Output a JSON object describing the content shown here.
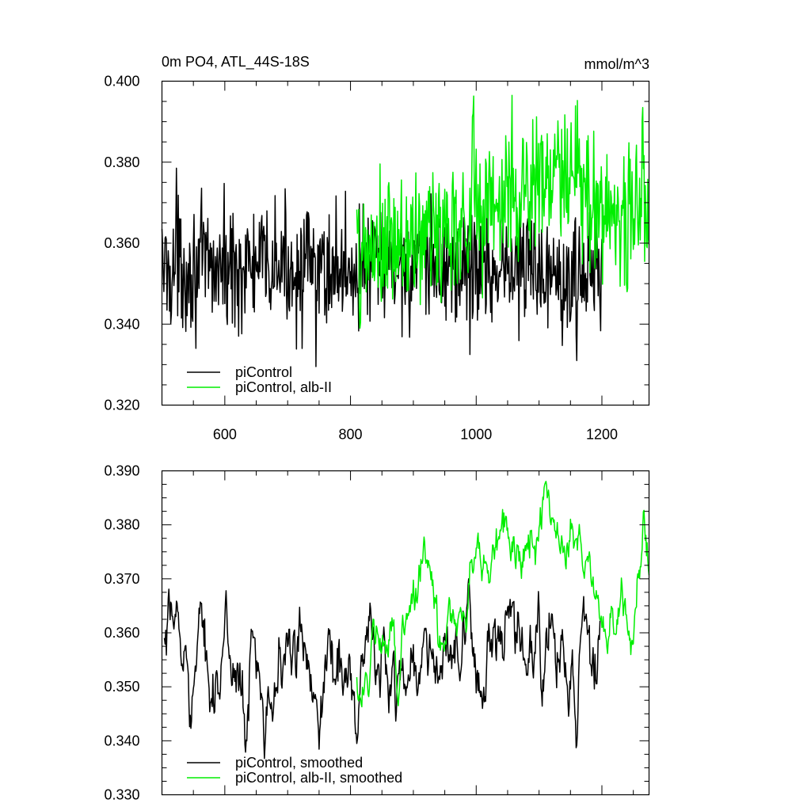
{
  "chart_data": [
    {
      "type": "line",
      "title": "0m PO4, ATL_44S-18S",
      "units": "mmol/m^3",
      "xlim": [
        500,
        1275
      ],
      "ylim": [
        0.32,
        0.4
      ],
      "x_ticks": [
        600,
        800,
        1000,
        1200
      ],
      "x_tick_labels": [
        "600",
        "800",
        "1000",
        "1200"
      ],
      "y_ticks": [
        0.32,
        0.34,
        0.36,
        0.38,
        0.4
      ],
      "y_tick_labels": [
        "0.320",
        "0.340",
        "0.360",
        "0.380",
        "0.400"
      ],
      "legend": {
        "position": "bottom-left"
      },
      "series": [
        {
          "name": "piControl",
          "color": "#000000",
          "x_range": [
            500,
            1200
          ],
          "mean": 0.354,
          "noise_amplitude": 0.0075,
          "peaks": [
            [
              523,
              0.3785
            ],
            [
              745,
              0.3295
            ],
            [
              990,
              0.3325
            ],
            [
              1160,
              0.331
            ],
            [
              1197,
              0.3445
            ]
          ]
        },
        {
          "name": "piControl, alb-II",
          "color": "#00ee00",
          "x_range": [
            810,
            1275
          ],
          "trend": [
            [
              810,
              0.356
            ],
            [
              900,
              0.36
            ],
            [
              1000,
              0.368
            ],
            [
              1100,
              0.375
            ],
            [
              1150,
              0.376
            ],
            [
              1200,
              0.368
            ],
            [
              1275,
              0.367
            ]
          ],
          "noise_amplitude": 0.009,
          "peaks": [
            [
              1057,
              0.3965
            ],
            [
              1265,
              0.3935
            ],
            [
              1240,
              0.348
            ],
            [
              995,
              0.392
            ],
            [
              815,
              0.339
            ]
          ]
        }
      ]
    },
    {
      "type": "line",
      "xlim": [
        500,
        1275
      ],
      "ylim": [
        0.33,
        0.39
      ],
      "x_ticks": [
        600,
        800,
        1000,
        1200
      ],
      "y_ticks": [
        0.33,
        0.34,
        0.35,
        0.36,
        0.37,
        0.38,
        0.39
      ],
      "y_tick_labels": [
        "0.330",
        "0.340",
        "0.350",
        "0.360",
        "0.370",
        "0.380",
        "0.390"
      ],
      "legend": {
        "position": "bottom-left"
      },
      "series": [
        {
          "name": "piControl, smoothed",
          "color": "#000000",
          "x_range": [
            503,
            1197
          ],
          "mean": 0.3545,
          "noise_amplitude": 0.0045,
          "peaks": [
            [
              522,
              0.363
            ],
            [
              600,
              0.3625
            ],
            [
              635,
              0.34
            ],
            [
              810,
              0.3395
            ],
            [
              1160,
              0.3392
            ],
            [
              1120,
              0.3635
            ],
            [
              1195,
              0.3595
            ]
          ]
        },
        {
          "name": "piControl, alb-II, smoothed",
          "color": "#00ee00",
          "x_range": [
            810,
            1275
          ],
          "trend": [
            [
              810,
              0.352
            ],
            [
              860,
              0.356
            ],
            [
              880,
              0.363
            ],
            [
              915,
              0.373
            ],
            [
              950,
              0.358
            ],
            [
              1000,
              0.372
            ],
            [
              1045,
              0.378
            ],
            [
              1070,
              0.372
            ],
            [
              1110,
              0.384
            ],
            [
              1150,
              0.378
            ],
            [
              1180,
              0.37
            ],
            [
              1210,
              0.362
            ],
            [
              1240,
              0.362
            ],
            [
              1265,
              0.378
            ],
            [
              1275,
              0.373
            ]
          ],
          "noise_amplitude": 0.003,
          "peaks": [
            [
              1113,
              0.385
            ],
            [
              1048,
              0.3815
            ],
            [
              876,
              0.3465
            ],
            [
              915,
              0.3735
            ],
            [
              1265,
              0.3795
            ],
            [
              1250,
              0.358
            ]
          ]
        }
      ]
    }
  ]
}
